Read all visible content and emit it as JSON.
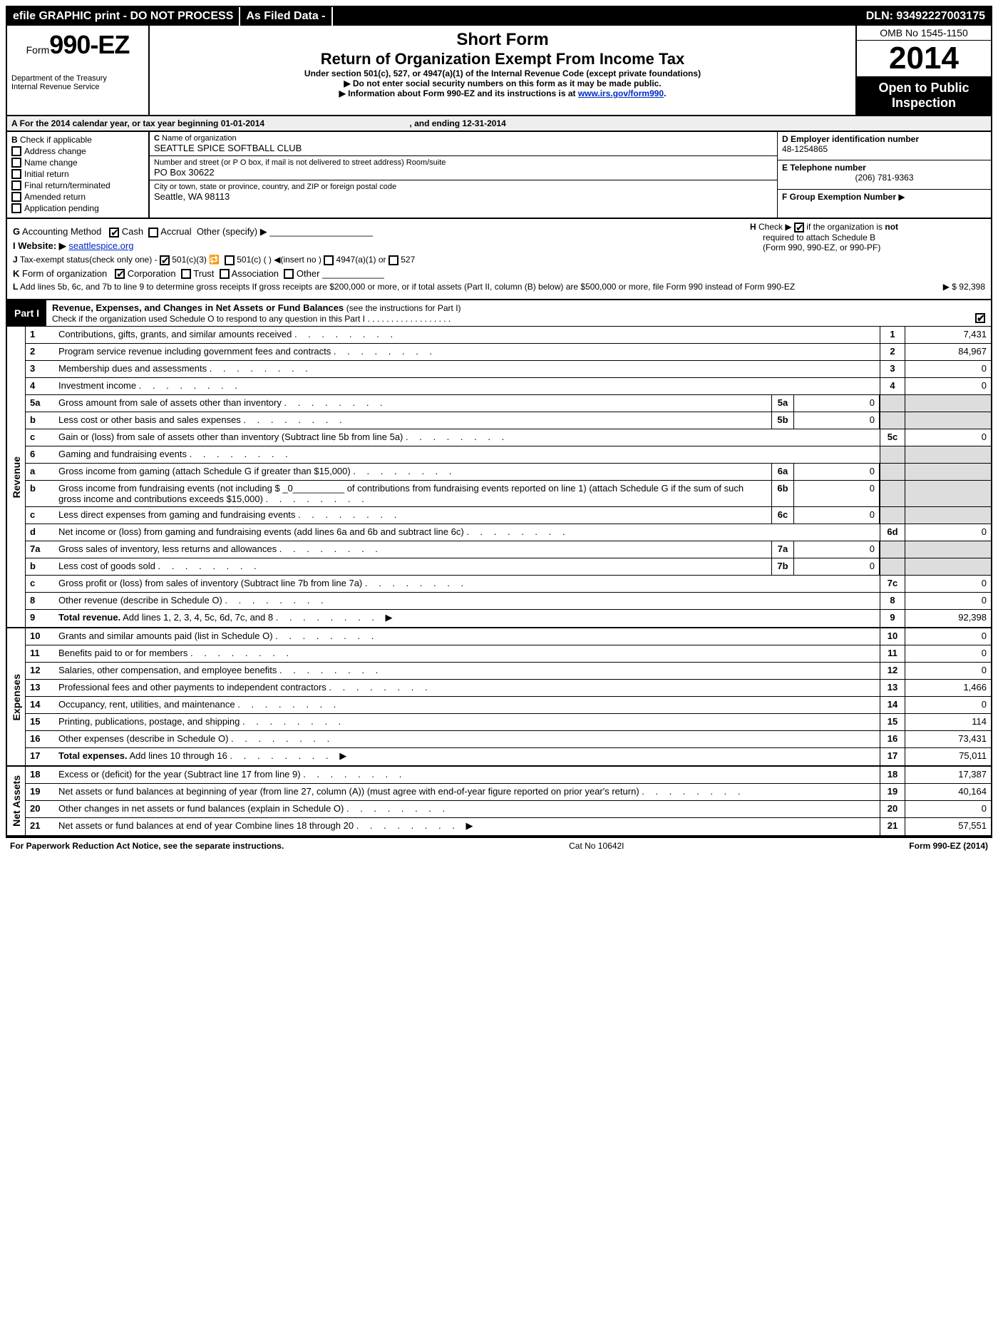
{
  "topbar": {
    "efile": "efile GRAPHIC print - DO NOT PROCESS",
    "asfiled": "As Filed Data -",
    "dln_label": "DLN:",
    "dln": "93492227003175"
  },
  "header": {
    "form_prefix": "Form",
    "form_no": "990-EZ",
    "dept1": "Department of the Treasury",
    "dept2": "Internal Revenue Service",
    "short_form": "Short Form",
    "return_title": "Return of Organization Exempt From Income Tax",
    "under": "Under section 501(c), 527, or 4947(a)(1) of the Internal Revenue Code (except private foundations)",
    "ssn_notice": "Do not enter social security numbers on this form as it may be made public.",
    "info_notice_pre": "Information about Form 990-EZ and its instructions is at ",
    "info_link": "www.irs.gov/form990",
    "omb": "OMB No 1545-1150",
    "year": "2014",
    "open1": "Open to Public",
    "open2": "Inspection"
  },
  "A": {
    "text_pre": "For the 2014 calendar year, or tax year beginning 01-01-2014",
    "text_post": ", and ending 12-31-2014"
  },
  "B": {
    "label": "Check if applicable",
    "items": [
      "Address change",
      "Name change",
      "Initial return",
      "Final return/terminated",
      "Amended return",
      "Application pending"
    ]
  },
  "C": {
    "name_lbl": "C Name of organization",
    "name": "SEATTLE SPICE SOFTBALL CLUB",
    "street_lbl": "Number and street (or P O box, if mail is not delivered to street address) Room/suite",
    "street": "PO Box 30622",
    "city_lbl": "City or town, state or province, country, and ZIP or foreign postal code",
    "city": "Seattle, WA  98113"
  },
  "D": {
    "lbl": "D Employer identification number",
    "val": "48-1254865"
  },
  "E": {
    "lbl": "E Telephone number",
    "val": "(206) 781-9363"
  },
  "F": {
    "lbl": "F Group Exemption Number",
    "arrow": "▶"
  },
  "G": {
    "text": "Accounting Method",
    "cash": "Cash",
    "accrual": "Accrual",
    "other": "Other (specify) ▶"
  },
  "H": {
    "text1": "Check ▶",
    "text2": "if the organization is",
    "not": "not",
    "text3": "required to attach Schedule B",
    "text4": "(Form 990, 990-EZ, or 990-PF)"
  },
  "I": {
    "lbl": "I Website: ▶",
    "val": "seattlespice.org"
  },
  "J": {
    "text": "Tax-exempt status(check only one) -",
    "a": "501(c)(3)",
    "b": "501(c) (   ) ◀(insert no )",
    "c": "4947(a)(1) or",
    "d": "527"
  },
  "K": {
    "text": "Form of organization",
    "corp": "Corporation",
    "trust": "Trust",
    "assoc": "Association",
    "other": "Other"
  },
  "L": {
    "text": "Add lines 5b, 6c, and 7b to line 9 to determine gross receipts  If gross receipts are $200,000 or more, or if total assets (Part II, column (B) below) are $500,000 or more, file Form 990 instead of Form 990-EZ",
    "arrow": "▶",
    "amount": "$ 92,398"
  },
  "part1": {
    "label": "Part I",
    "title": "Revenue, Expenses, and Changes in Net Assets or Fund Balances",
    "sub": "(see the instructions for Part I)",
    "check_line": "Check if the organization used Schedule O to respond to any question in this Part I"
  },
  "sections": [
    {
      "side": "Revenue",
      "lines": [
        {
          "n": "1",
          "d": "Contributions, gifts, grants, and similar amounts received",
          "box": "1",
          "val": "7,431"
        },
        {
          "n": "2",
          "d": "Program service revenue including government fees and contracts",
          "box": "2",
          "val": "84,967"
        },
        {
          "n": "3",
          "d": "Membership dues and assessments",
          "box": "3",
          "val": "0"
        },
        {
          "n": "4",
          "d": "Investment income",
          "box": "4",
          "val": "0"
        },
        {
          "n": "5a",
          "d": "Gross amount from sale of assets other than inventory",
          "sub": "5a",
          "subval": "0",
          "grey": true
        },
        {
          "n": "b",
          "d": "Less  cost or other basis and sales expenses",
          "sub": "5b",
          "subval": "0",
          "grey": true
        },
        {
          "n": "c",
          "d": "Gain or (loss) from sale of assets other than inventory (Subtract line 5b from line 5a)",
          "box": "5c",
          "val": "0"
        },
        {
          "n": "6",
          "d": "Gaming and fundraising events",
          "grey": true,
          "header_only": true
        },
        {
          "n": "a",
          "d": "Gross income from gaming (attach Schedule G if greater than $15,000)",
          "sub": "6a",
          "subval": "0",
          "grey": true
        },
        {
          "n": "b",
          "d": "Gross income from fundraising events (not including $ _0__________ of contributions from fundraising events reported on line 1) (attach Schedule G if the sum of such gross income and contributions exceeds $15,000)",
          "sub": "6b",
          "subval": "0",
          "grey": true
        },
        {
          "n": "c",
          "d": "Less  direct expenses from gaming and fundraising events",
          "sub": "6c",
          "subval": "0",
          "grey": true
        },
        {
          "n": "d",
          "d": "Net income or (loss) from gaming and fundraising events (add lines 6a and 6b and subtract line 6c)",
          "box": "6d",
          "val": "0"
        },
        {
          "n": "7a",
          "d": "Gross sales of inventory, less returns and allowances",
          "sub": "7a",
          "subval": "0",
          "grey": true
        },
        {
          "n": "b",
          "d": "Less  cost of goods sold",
          "sub": "7b",
          "subval": "0",
          "grey": true
        },
        {
          "n": "c",
          "d": "Gross profit or (loss) from sales of inventory (Subtract line 7b from line 7a)",
          "box": "7c",
          "val": "0"
        },
        {
          "n": "8",
          "d": "Other revenue (describe in Schedule O)",
          "box": "8",
          "val": "0"
        },
        {
          "n": "9",
          "d": "Total revenue. Add lines 1, 2, 3, 4, 5c, 6d, 7c, and 8",
          "box": "9",
          "val": "92,398",
          "bold": true,
          "arr": true
        }
      ]
    },
    {
      "side": "Expenses",
      "lines": [
        {
          "n": "10",
          "d": "Grants and similar amounts paid (list in Schedule O)",
          "box": "10",
          "val": "0"
        },
        {
          "n": "11",
          "d": "Benefits paid to or for members",
          "box": "11",
          "val": "0"
        },
        {
          "n": "12",
          "d": "Salaries, other compensation, and employee benefits",
          "box": "12",
          "val": "0"
        },
        {
          "n": "13",
          "d": "Professional fees and other payments to independent contractors",
          "box": "13",
          "val": "1,466"
        },
        {
          "n": "14",
          "d": "Occupancy, rent, utilities, and maintenance",
          "box": "14",
          "val": "0"
        },
        {
          "n": "15",
          "d": "Printing, publications, postage, and shipping",
          "box": "15",
          "val": "114"
        },
        {
          "n": "16",
          "d": "Other expenses (describe in Schedule O)",
          "box": "16",
          "val": "73,431"
        },
        {
          "n": "17",
          "d": "Total expenses. Add lines 10 through 16",
          "box": "17",
          "val": "75,011",
          "bold": true,
          "arr": true
        }
      ]
    },
    {
      "side": "Net Assets",
      "lines": [
        {
          "n": "18",
          "d": "Excess or (deficit) for the year (Subtract line 17 from line 9)",
          "box": "18",
          "val": "17,387"
        },
        {
          "n": "19",
          "d": "Net assets or fund balances at beginning of year (from line 27, column (A)) (must agree with end-of-year figure reported on prior year's return)",
          "box": "19",
          "val": "40,164"
        },
        {
          "n": "20",
          "d": "Other changes in net assets or fund balances (explain in Schedule O)",
          "box": "20",
          "val": "0"
        },
        {
          "n": "21",
          "d": "Net assets or fund balances at end of year  Combine lines 18 through 20",
          "box": "21",
          "val": "57,551",
          "arr": true
        }
      ]
    }
  ],
  "footer": {
    "left": "For Paperwork Reduction Act Notice, see the separate instructions.",
    "mid": "Cat No  10642I",
    "right": "Form 990-EZ (2014)"
  }
}
